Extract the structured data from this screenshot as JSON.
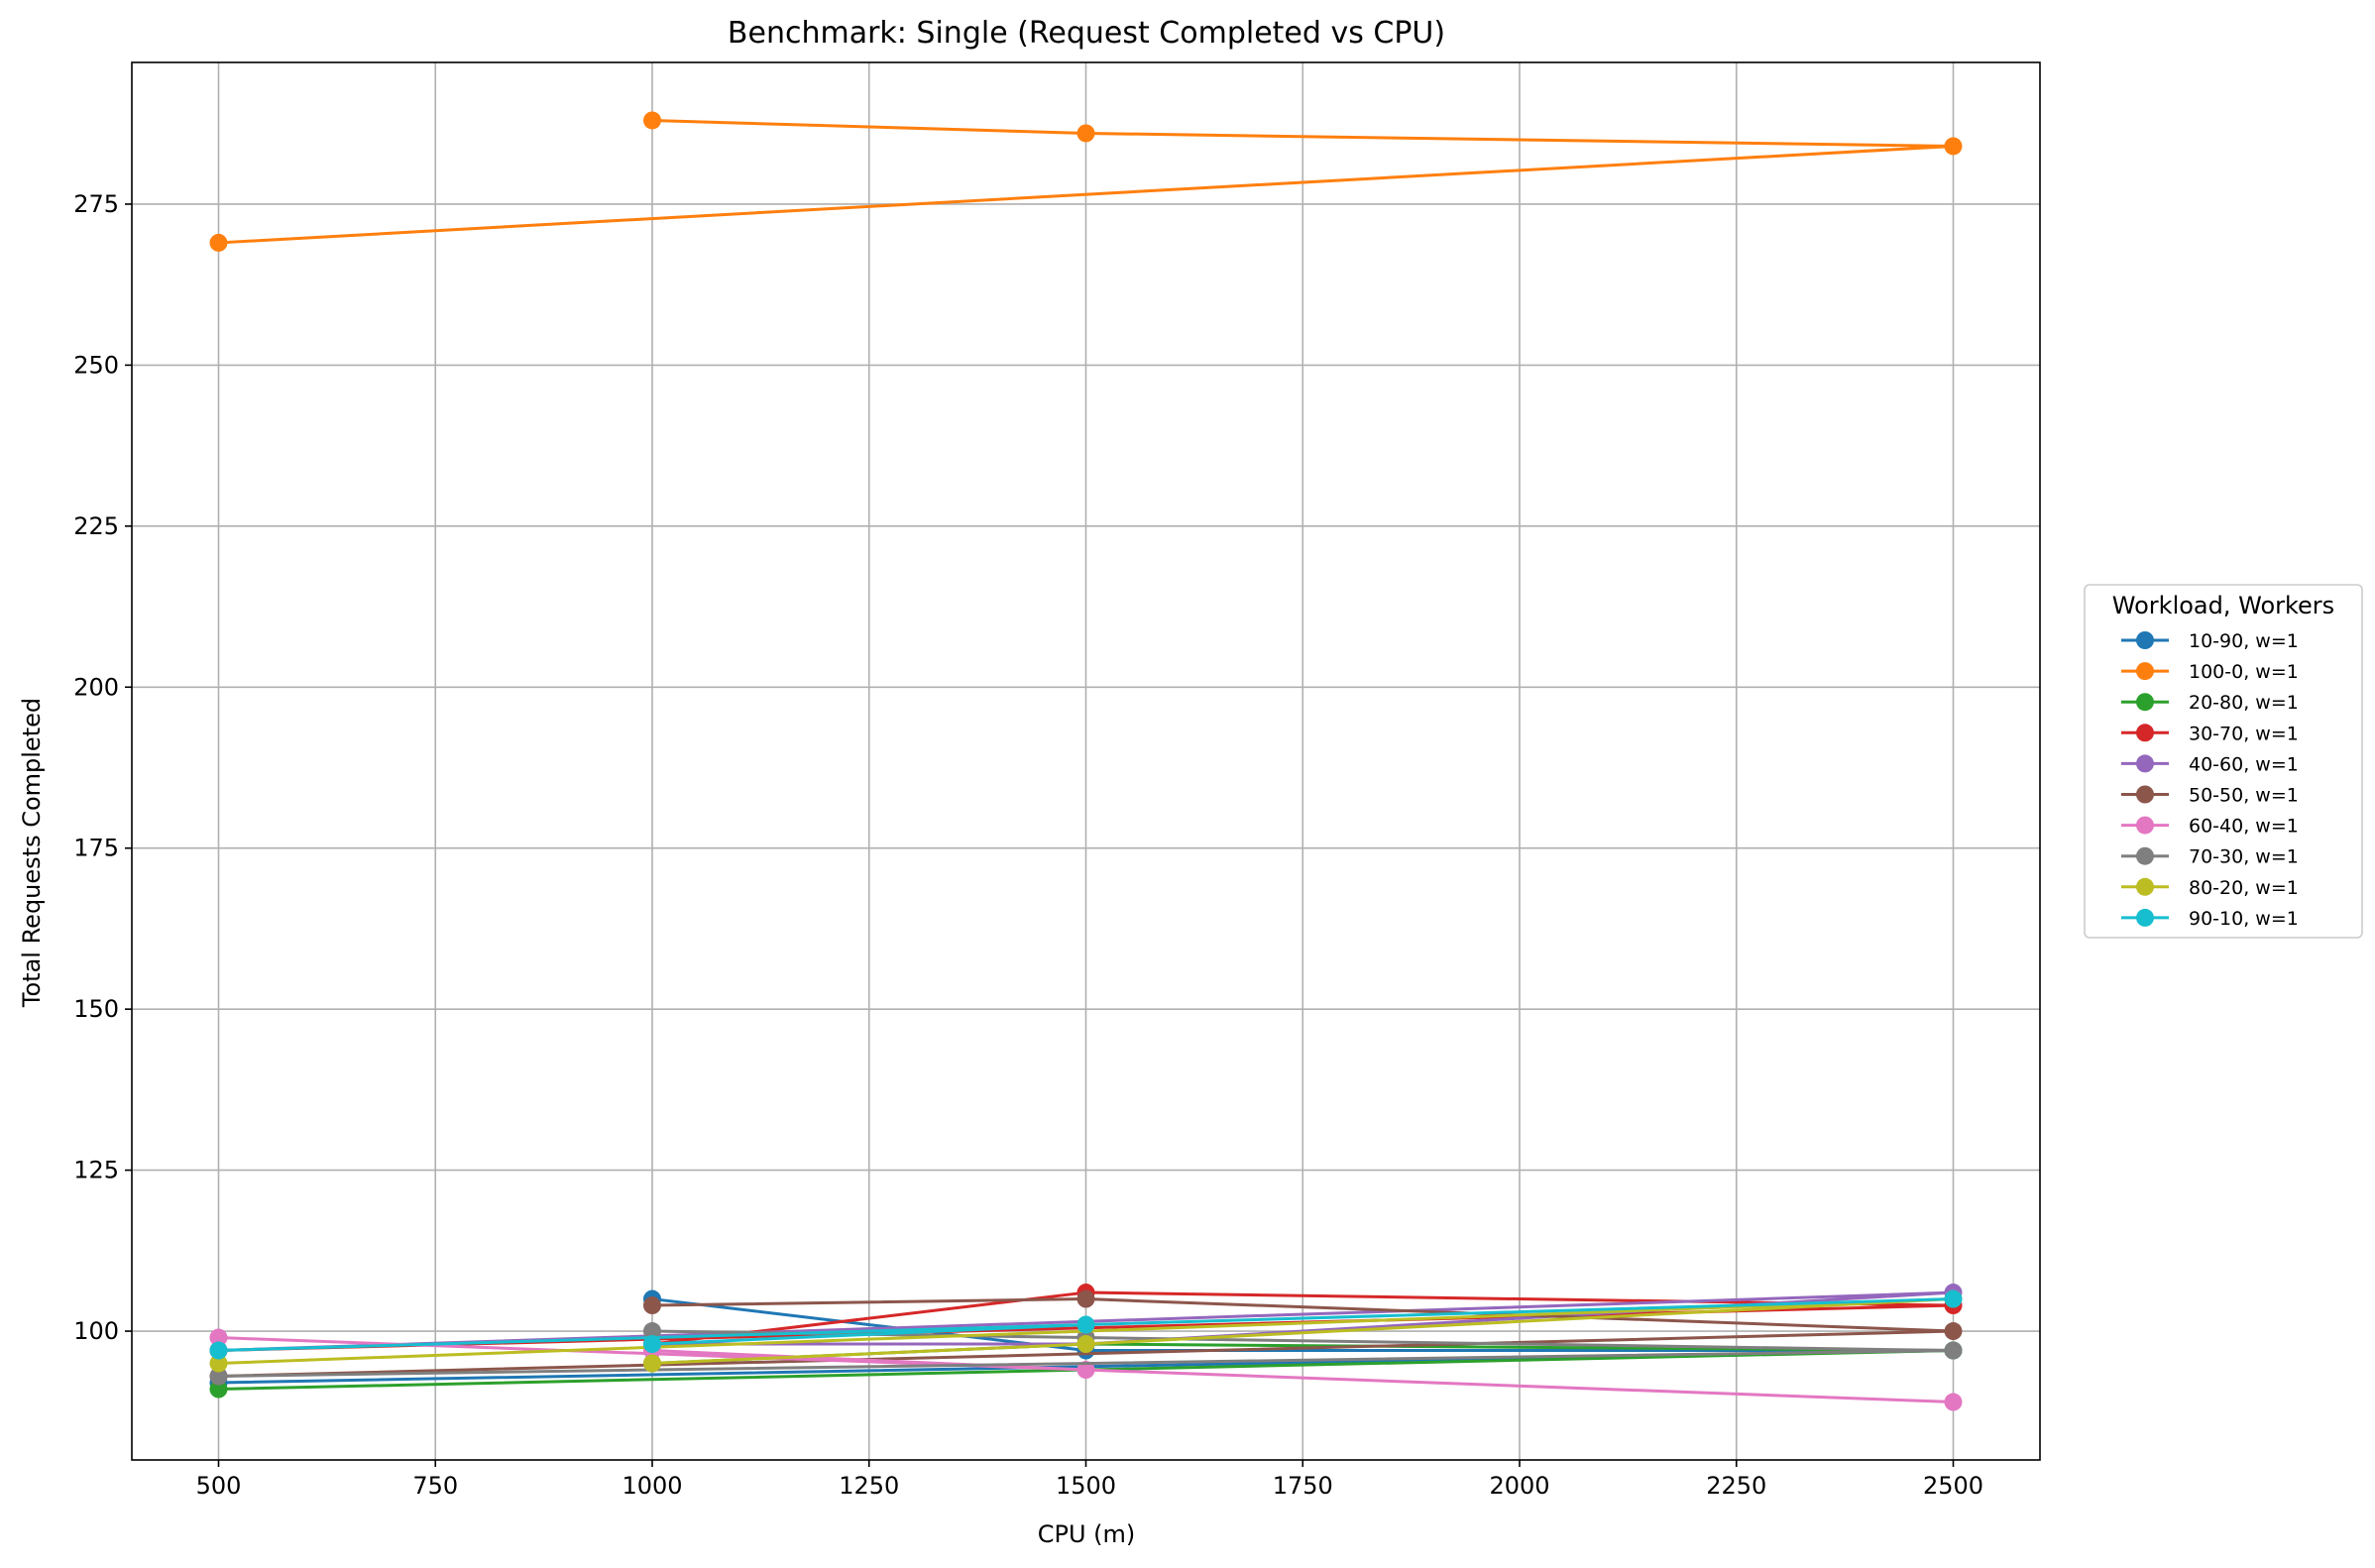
{
  "chart_data": {
    "type": "line",
    "title": "Benchmark: Single (Request Completed vs CPU)",
    "xlabel": "CPU (m)",
    "ylabel": "Total Requests Completed",
    "xlim": [
      400,
      2600
    ],
    "ylim": [
      80,
      297
    ],
    "x_ticks": [
      500,
      750,
      1000,
      1250,
      1500,
      1750,
      2000,
      2250,
      2500
    ],
    "y_ticks": [
      100,
      125,
      150,
      175,
      200,
      225,
      250,
      275
    ],
    "grid": true,
    "legend": {
      "title": "Workload, Workers",
      "placement": "outside-right"
    },
    "series": [
      {
        "name": "10-90, w=1",
        "color": "#1f77b4",
        "x": [
          1000,
          1500,
          2500,
          500
        ],
        "y": [
          105,
          97,
          97,
          92
        ]
      },
      {
        "name": "100-0, w=1",
        "color": "#ff7f0e",
        "x": [
          1000,
          1500,
          2500,
          500
        ],
        "y": [
          288,
          286,
          284,
          269
        ]
      },
      {
        "name": "20-80, w=1",
        "color": "#2ca02c",
        "x": [
          1000,
          1500,
          2500,
          500
        ],
        "y": [
          95,
          98,
          97,
          91
        ]
      },
      {
        "name": "30-70, w=1",
        "color": "#d62728",
        "x": [
          1000,
          1500,
          2500,
          500
        ],
        "y": [
          98,
          106,
          104,
          97
        ]
      },
      {
        "name": "40-60, w=1",
        "color": "#9467bd",
        "x": [
          1000,
          1500,
          2500,
          500
        ],
        "y": [
          98,
          98,
          106,
          97
        ]
      },
      {
        "name": "50-50, w=1",
        "color": "#8c564b",
        "x": [
          1000,
          1500,
          2500,
          500
        ],
        "y": [
          104,
          105,
          100,
          93
        ]
      },
      {
        "name": "60-40, w=1",
        "color": "#e377c2",
        "x": [
          1000,
          1500,
          2500,
          500
        ],
        "y": [
          97,
          94,
          89,
          99
        ]
      },
      {
        "name": "70-30, w=1",
        "color": "#7f7f7f",
        "x": [
          1000,
          1500,
          2500,
          500
        ],
        "y": [
          100,
          99,
          97,
          93
        ]
      },
      {
        "name": "80-20, w=1",
        "color": "#bcbd22",
        "x": [
          1000,
          1500,
          2500,
          500
        ],
        "y": [
          95,
          98,
          105,
          95
        ]
      },
      {
        "name": "90-10, w=1",
        "color": "#17becf",
        "x": [
          1000,
          1500,
          2500,
          500
        ],
        "y": [
          98,
          101,
          105,
          97
        ]
      }
    ]
  }
}
